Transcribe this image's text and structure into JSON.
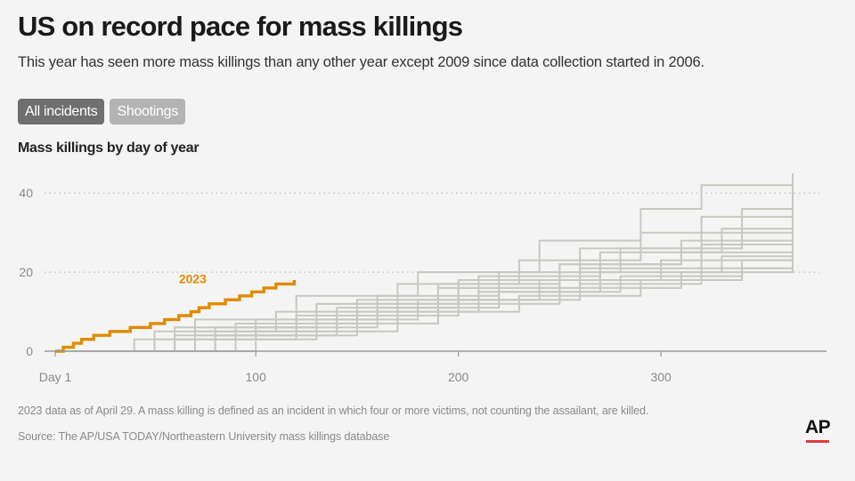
{
  "header": {
    "title": "US on record pace for mass killings",
    "subtitle": "This year has seen more mass killings than any other year except 2009 since data collection started in 2006."
  },
  "toggles": [
    {
      "label": "All incidents",
      "active": true
    },
    {
      "label": "Shootings",
      "active": false
    }
  ],
  "chart_heading": "Mass killings by day of year",
  "footer": {
    "note": "2023 data as of April 29. A mass killing is defined as an incident in which four or more victims, not counting the assailant, are killed.",
    "source": "Source: The AP/USA TODAY/Northeastern University mass killings database",
    "logo": "AP"
  },
  "chart_data": {
    "type": "line",
    "title": "Mass killings by day of year",
    "xlabel": "",
    "ylabel": "",
    "xlim": [
      1,
      365
    ],
    "ylim": [
      0,
      45
    ],
    "x_ticks": [
      {
        "value": 1,
        "label": "Day 1"
      },
      {
        "value": 100,
        "label": "100"
      },
      {
        "value": 200,
        "label": "200"
      },
      {
        "value": 300,
        "label": "300"
      }
    ],
    "y_ticks": [
      0,
      20,
      40
    ],
    "grid": "horizontal dotted",
    "highlight_series": {
      "name": "2023",
      "color": "#e08a00",
      "points": [
        [
          1,
          0
        ],
        [
          5,
          1
        ],
        [
          10,
          2
        ],
        [
          14,
          3
        ],
        [
          20,
          4
        ],
        [
          28,
          5
        ],
        [
          38,
          6
        ],
        [
          48,
          7
        ],
        [
          55,
          8
        ],
        [
          62,
          9
        ],
        [
          68,
          10
        ],
        [
          72,
          11
        ],
        [
          77,
          12
        ],
        [
          85,
          13
        ],
        [
          92,
          14
        ],
        [
          98,
          15
        ],
        [
          104,
          16
        ],
        [
          110,
          17
        ],
        [
          119,
          18
        ]
      ]
    },
    "background_series": {
      "color": "#c8c8c0",
      "series": [
        {
          "points": [
            [
              1,
              0
            ],
            [
              70,
              8
            ],
            [
              120,
              14
            ],
            [
              180,
              20
            ],
            [
              240,
              28
            ],
            [
              290,
              36
            ],
            [
              320,
              42
            ],
            [
              365,
              45
            ]
          ]
        },
        {
          "points": [
            [
              1,
              0
            ],
            [
              80,
              6
            ],
            [
              130,
              12
            ],
            [
              200,
              18
            ],
            [
              260,
              26
            ],
            [
              320,
              34
            ],
            [
              365,
              42
            ]
          ]
        },
        {
          "points": [
            [
              1,
              0
            ],
            [
              50,
              5
            ],
            [
              110,
              10
            ],
            [
              170,
              17
            ],
            [
              230,
              23
            ],
            [
              290,
              30
            ],
            [
              340,
              36
            ],
            [
              365,
              38
            ]
          ]
        },
        {
          "points": [
            [
              1,
              0
            ],
            [
              60,
              4
            ],
            [
              120,
              9
            ],
            [
              190,
              16
            ],
            [
              250,
              22
            ],
            [
              310,
              28
            ],
            [
              365,
              36
            ]
          ]
        },
        {
          "points": [
            [
              1,
              0
            ],
            [
              90,
              7
            ],
            [
              150,
              13
            ],
            [
              210,
              19
            ],
            [
              270,
              25
            ],
            [
              330,
              31
            ],
            [
              365,
              34
            ]
          ]
        },
        {
          "points": [
            [
              1,
              0
            ],
            [
              40,
              3
            ],
            [
              100,
              8
            ],
            [
              160,
              14
            ],
            [
              220,
              20
            ],
            [
              280,
              26
            ],
            [
              340,
              30
            ],
            [
              365,
              33
            ]
          ]
        },
        {
          "points": [
            [
              1,
              0
            ],
            [
              70,
              5
            ],
            [
              140,
              11
            ],
            [
              200,
              16
            ],
            [
              260,
              21
            ],
            [
              320,
              27
            ],
            [
              365,
              31
            ]
          ]
        },
        {
          "points": [
            [
              1,
              0
            ],
            [
              60,
              6
            ],
            [
              130,
              12
            ],
            [
              190,
              17
            ],
            [
              250,
              22
            ],
            [
              310,
              25
            ],
            [
              365,
              29
            ]
          ]
        },
        {
          "points": [
            [
              1,
              0
            ],
            [
              80,
              4
            ],
            [
              150,
              10
            ],
            [
              210,
              15
            ],
            [
              270,
              20
            ],
            [
              330,
              24
            ],
            [
              365,
              27
            ]
          ]
        },
        {
          "points": [
            [
              1,
              0
            ],
            [
              50,
              3
            ],
            [
              120,
              8
            ],
            [
              180,
              13
            ],
            [
              240,
              18
            ],
            [
              300,
              23
            ],
            [
              365,
              26
            ]
          ]
        },
        {
          "points": [
            [
              1,
              0
            ],
            [
              100,
              6
            ],
            [
              160,
              11
            ],
            [
              220,
              15
            ],
            [
              280,
              19
            ],
            [
              340,
              23
            ],
            [
              365,
              25
            ]
          ]
        },
        {
          "points": [
            [
              1,
              0
            ],
            [
              70,
              4
            ],
            [
              140,
              9
            ],
            [
              200,
              13
            ],
            [
              260,
              17
            ],
            [
              320,
              21
            ],
            [
              365,
              24
            ]
          ]
        },
        {
          "points": [
            [
              1,
              0
            ],
            [
              90,
              5
            ],
            [
              170,
              10
            ],
            [
              230,
              14
            ],
            [
              290,
              18
            ],
            [
              340,
              21
            ],
            [
              365,
              22
            ]
          ]
        },
        {
          "points": [
            [
              1,
              0
            ],
            [
              60,
              3
            ],
            [
              130,
              7
            ],
            [
              190,
              12
            ],
            [
              250,
              16
            ],
            [
              310,
              20
            ],
            [
              365,
              22
            ]
          ]
        }
      ]
    }
  }
}
